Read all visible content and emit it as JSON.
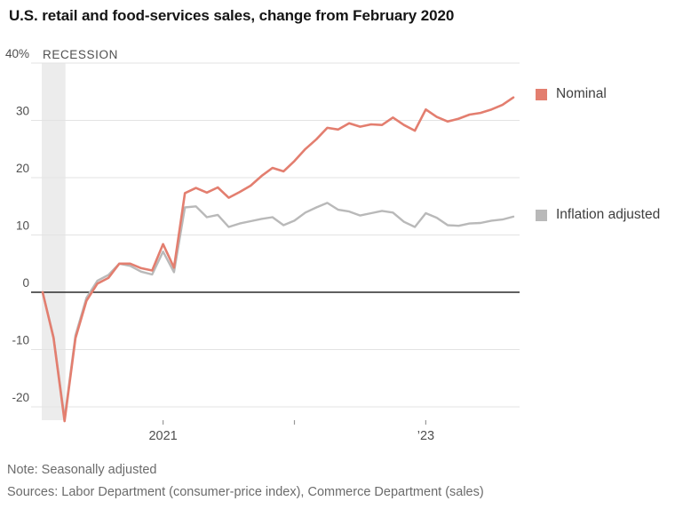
{
  "title": "U.S. retail and food-services sales, change from February 2020",
  "recession_label": "RECESSION",
  "legend": {
    "nominal": "Nominal",
    "inflation": "Inflation adjusted"
  },
  "notes": {
    "note": "Note: Seasonally adjusted",
    "sources": "Sources: Labor Department (consumer-price index), Commerce Department (sales)"
  },
  "colors": {
    "nominal": "#e37e6f",
    "inflation_adjusted": "#b9b9b9",
    "recession_band": "#ececec",
    "gridline": "#e3e3e3",
    "zero_line": "#2b2b2b",
    "tick_mark": "#999999",
    "axis_text": "#4f4f4f"
  },
  "chart_data": {
    "type": "line",
    "title": "U.S. retail and food-services sales, change from February 2020",
    "x_unit": "month",
    "x_start": "2020-02",
    "x_end": "2023-09",
    "ylim": [
      -25,
      41
    ],
    "grid": "horizontal",
    "legend_position": "right",
    "y_gridlines": [
      40,
      30,
      20,
      10,
      0,
      -10,
      -20
    ],
    "y_tick_labels": [
      "40%",
      "30",
      "20",
      "10",
      "0",
      "-10",
      "-20"
    ],
    "x_ticks": [
      {
        "month_index": 11,
        "label": "2021"
      },
      {
        "month_index": 23,
        "label": ""
      },
      {
        "month_index": 35,
        "label": "’23"
      }
    ],
    "recession_band_months": [
      0,
      2
    ],
    "series": [
      {
        "name": "Nominal",
        "color_key": "nominal",
        "values": [
          0,
          -8,
          -22.5,
          -8,
          -1.5,
          1.5,
          2.5,
          5,
          5,
          4.2,
          3.8,
          8.4,
          4.3,
          17.3,
          18.2,
          17.4,
          18.3,
          16.5,
          17.5,
          18.6,
          20.3,
          21.7,
          21.1,
          22.9,
          25,
          26.7,
          28.7,
          28.4,
          29.5,
          28.9,
          29.3,
          29.2,
          30.5,
          29.2,
          28.2,
          31.9,
          30.6,
          29.8,
          30.3,
          31,
          31.3,
          31.9,
          32.7,
          34
        ]
      },
      {
        "name": "Inflation adjusted",
        "color_key": "inflation_adjusted",
        "values": [
          0,
          -7.8,
          -22,
          -7.5,
          -1,
          2,
          3,
          5,
          4.6,
          3.6,
          3.1,
          7.1,
          3.5,
          14.8,
          15,
          13.1,
          13.5,
          11.4,
          12,
          12.4,
          12.8,
          13.1,
          11.7,
          12.5,
          13.9,
          14.8,
          15.6,
          14.4,
          14.1,
          13.4,
          13.8,
          14.2,
          13.9,
          12.3,
          11.4,
          13.8,
          13,
          11.7,
          11.6,
          12,
          12.1,
          12.5,
          12.7,
          13.2
        ]
      }
    ]
  }
}
